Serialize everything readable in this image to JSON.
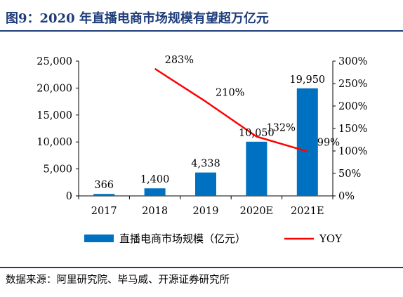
{
  "figure": {
    "title": "图9：2020 年直播电商市场规模有望超万亿元",
    "source": "数据来源：阿里研究院、毕马威、开源证券研究所"
  },
  "chart_data": {
    "type": "bar",
    "categories": [
      "2017",
      "2018",
      "2019",
      "2020E",
      "2021E"
    ],
    "series": [
      {
        "name": "直播电商市场规模（亿元）",
        "type": "bar",
        "axis": "left",
        "color": "#0070c0",
        "values": [
          366,
          1400,
          4338,
          10050,
          19950
        ],
        "labels": [
          "366",
          "1,400",
          "4,338",
          "10,050",
          "19,950"
        ]
      },
      {
        "name": "YOY",
        "type": "line",
        "axis": "right",
        "color": "#ff0000",
        "values": [
          null,
          283,
          210,
          132,
          99
        ],
        "labels": [
          "",
          "283%",
          "210%",
          "132%",
          "99%"
        ]
      }
    ],
    "ylim": [
      0,
      25000
    ],
    "y_ticks": [
      "0",
      "5,000",
      "10,000",
      "15,000",
      "20,000",
      "25,000"
    ],
    "y2lim": [
      0,
      300
    ],
    "y2_ticks": [
      "0%",
      "50%",
      "100%",
      "150%",
      "200%",
      "250%",
      "300%"
    ],
    "grid": false,
    "legend": "bottom"
  }
}
